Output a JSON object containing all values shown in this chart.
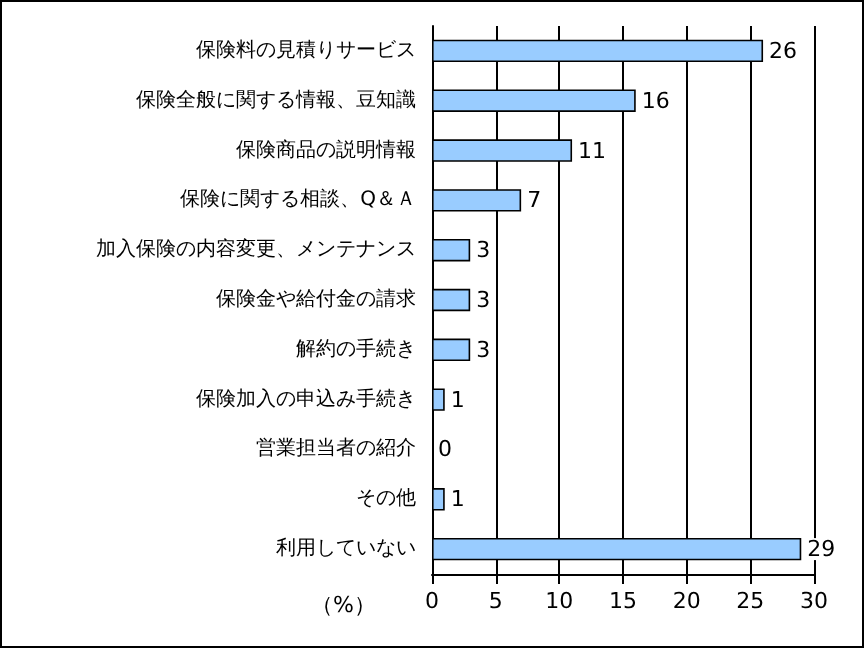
{
  "chart_data": {
    "type": "bar",
    "orientation": "horizontal",
    "categories": [
      "保険料の見積りサービス",
      "保険全般に関する情報、豆知識",
      "保険商品の説明情報",
      "保険に関する相談、Q＆Ａ",
      "加入保険の内容変更、メンテナンス",
      "保険金や給付金の請求",
      "解約の手続き",
      "保険加入の申込み手続き",
      "営業担当者の紹介",
      "その他",
      "利用していない"
    ],
    "values": [
      26,
      16,
      11,
      7,
      3,
      3,
      3,
      1,
      0,
      1,
      29
    ],
    "color": "#99ccff",
    "xlabel": "（%）",
    "xlim": [
      0,
      30
    ],
    "xticks": [
      0,
      5,
      10,
      15,
      20,
      25,
      30
    ],
    "grid": "x",
    "data_labels": true
  }
}
